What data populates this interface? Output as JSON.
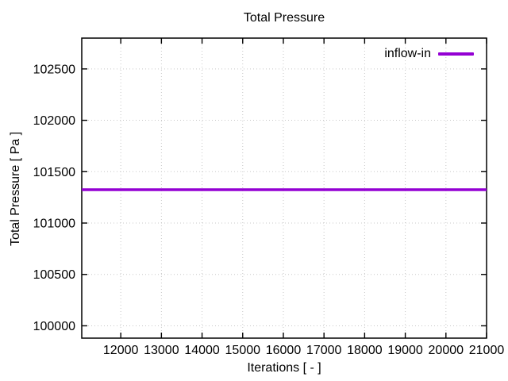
{
  "figure": {
    "background_color": "#ffffff",
    "text_color": "#000000"
  },
  "chart_data": {
    "type": "line",
    "title": "Total Pressure",
    "xlabel": "Iterations [ - ]",
    "ylabel": "Total Pressure [ Pa ]",
    "xlim": [
      11040,
      21000
    ],
    "ylim": [
      99880,
      102800
    ],
    "xticks": [
      12000,
      13000,
      14000,
      15000,
      16000,
      17000,
      18000,
      19000,
      20000,
      21000
    ],
    "yticks": [
      100000,
      100500,
      101000,
      101500,
      102000,
      102500
    ],
    "grid": true,
    "grid_style": "dotted",
    "grid_color": "#c8c8c8",
    "axis_color": "#000000",
    "legend_position": "top-right-inside",
    "series": [
      {
        "name": "inflow-in",
        "color": "#9400D3",
        "line_width": 3.5,
        "x": [
          11040,
          12000,
          13000,
          14000,
          15000,
          16000,
          17000,
          18000,
          19000,
          20000,
          21000
        ],
        "y": [
          101325,
          101325,
          101325,
          101325,
          101325,
          101325,
          101325,
          101325,
          101325,
          101325,
          101325
        ]
      }
    ]
  }
}
